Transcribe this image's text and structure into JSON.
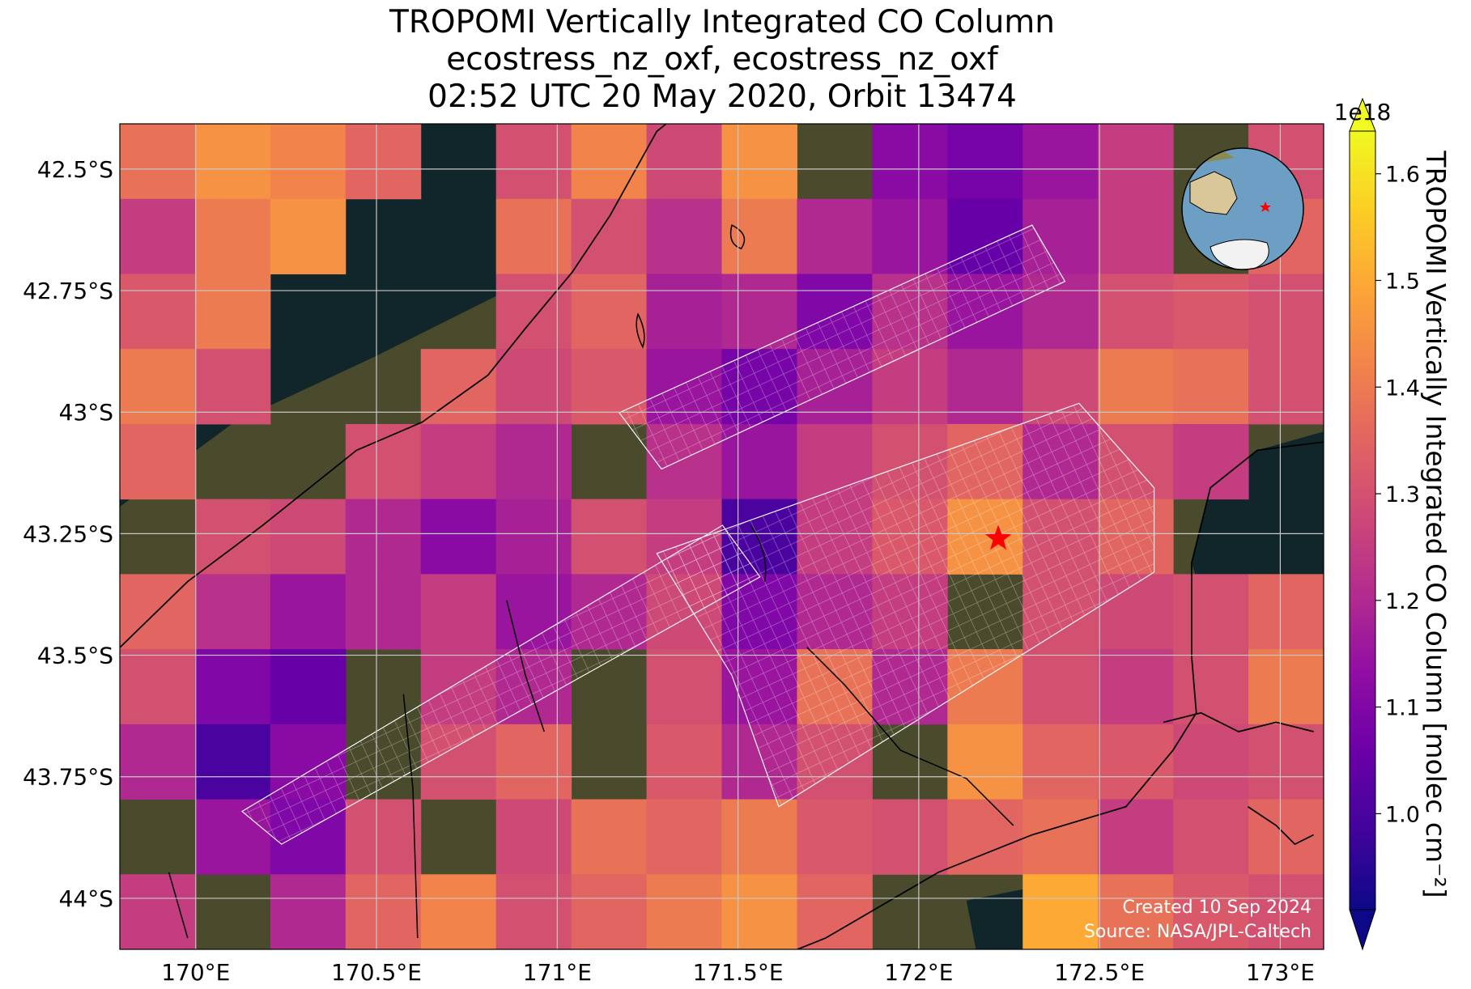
{
  "chart_data": {
    "type": "heatmap",
    "title": [
      "TROPOMI Vertically Integrated CO Column",
      "ecostress_nz_oxf, ecostress_nz_oxf",
      "02:52 UTC 20 May 2020, Orbit 13474"
    ],
    "cmap": "plasma",
    "xlim": [
      169.79,
      173.12
    ],
    "ylim": [
      -44.105,
      -42.407
    ],
    "xticks": [
      {
        "value": 170,
        "label": "170°E"
      },
      {
        "value": 170.5,
        "label": "170.5°E"
      },
      {
        "value": 171,
        "label": "171°E"
      },
      {
        "value": 171.5,
        "label": "171.5°E"
      },
      {
        "value": 172,
        "label": "172°E"
      },
      {
        "value": 172.5,
        "label": "172.5°E"
      },
      {
        "value": 173,
        "label": "173°E"
      }
    ],
    "yticks": [
      {
        "value": -42.5,
        "label": "42.5°S"
      },
      {
        "value": -42.75,
        "label": "42.75°S"
      },
      {
        "value": -43,
        "label": "43°S"
      },
      {
        "value": -43.25,
        "label": "43.25°S"
      },
      {
        "value": -43.5,
        "label": "43.5°S"
      },
      {
        "value": -43.75,
        "label": "43.75°S"
      },
      {
        "value": -44,
        "label": "44°S"
      }
    ],
    "grid": true,
    "z": [
      [
        1.38,
        1.45,
        1.42,
        1.35,
        null,
        1.3,
        1.42,
        1.28,
        1.45,
        null,
        1.12,
        1.08,
        1.15,
        1.25,
        null,
        1.3
      ],
      [
        1.25,
        1.4,
        1.45,
        null,
        null,
        1.38,
        1.3,
        1.22,
        1.4,
        1.2,
        1.15,
        1.05,
        1.18,
        1.25,
        null,
        1.35
      ],
      [
        1.32,
        1.4,
        null,
        null,
        null,
        1.3,
        1.35,
        1.18,
        1.2,
        1.1,
        1.22,
        1.15,
        1.2,
        1.3,
        1.32,
        1.3
      ],
      [
        1.4,
        1.3,
        null,
        null,
        1.35,
        1.28,
        1.32,
        1.15,
        1.08,
        1.18,
        1.25,
        1.2,
        1.28,
        1.4,
        1.38,
        1.3
      ],
      [
        1.35,
        null,
        null,
        1.3,
        1.25,
        1.2,
        null,
        1.22,
        1.15,
        1.25,
        1.3,
        1.35,
        1.2,
        1.3,
        1.25,
        null
      ],
      [
        null,
        1.3,
        1.28,
        1.2,
        1.12,
        1.18,
        1.3,
        1.25,
        1.0,
        1.25,
        1.32,
        1.45,
        1.3,
        1.35,
        null,
        null
      ],
      [
        1.35,
        1.22,
        1.15,
        1.2,
        1.25,
        1.15,
        1.2,
        1.28,
        1.1,
        1.2,
        1.25,
        null,
        1.3,
        1.28,
        1.3,
        1.35
      ],
      [
        1.3,
        1.1,
        1.05,
        null,
        1.25,
        1.2,
        null,
        1.3,
        1.15,
        1.38,
        1.2,
        1.4,
        1.3,
        1.25,
        1.3,
        1.4
      ],
      [
        1.2,
        1.0,
        1.12,
        null,
        1.3,
        1.35,
        null,
        1.32,
        1.2,
        1.3,
        null,
        1.45,
        1.35,
        1.32,
        1.28,
        1.3
      ],
      [
        null,
        1.15,
        1.1,
        1.3,
        null,
        1.28,
        1.38,
        1.35,
        1.4,
        1.32,
        1.3,
        1.35,
        1.38,
        1.25,
        1.3,
        1.35
      ],
      [
        1.25,
        null,
        1.2,
        1.35,
        1.42,
        1.3,
        1.35,
        1.4,
        1.45,
        1.35,
        null,
        null,
        1.5,
        1.38,
        1.32,
        1.3
      ]
    ],
    "colorbar": {
      "clim": [
        0.91,
        1.64
      ],
      "ticks": [
        {
          "value": 1,
          "label": "1.0"
        },
        1.1,
        1.2,
        1.3,
        1.4,
        1.5,
        1.6
      ],
      "multiplier": "1e18",
      "label": "TROPOMI Vertically Integrated CO Column [molec cm⁻²]",
      "extend": "both"
    },
    "site": {
      "lon": 172.22,
      "lat": -43.26,
      "color": "#ff0000"
    },
    "annotations": [
      "Created 10 Sep 2024",
      "Source: NASA/JPL-Caltech"
    ]
  }
}
